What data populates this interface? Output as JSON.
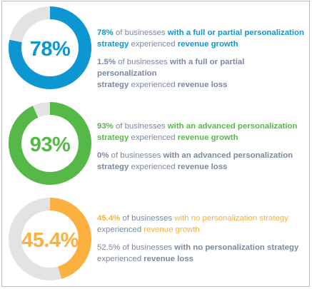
{
  "chart_data": [
    {
      "type": "donut",
      "value": 78,
      "label": "78%",
      "color": "#0c96d2",
      "track_color": "#e3e3e3",
      "statements": [
        {
          "value_text": "78%",
          "line1_mid": " of businesses ",
          "line1_bold": "with a full or partial personalization",
          "line2_bold1": "strategy",
          "line2_mid": "  experienced ",
          "line2_bold2": "revenue growth"
        },
        {
          "value_text": "1.5%",
          "line1_mid": " of businesses ",
          "line1_bold": "with a full or partial personalization",
          "line2_bold1": "strategy",
          "line2_mid": "  experienced ",
          "line2_bold2": "revenue loss"
        }
      ]
    },
    {
      "type": "donut",
      "value": 93,
      "label": "93%",
      "color": "#55b947",
      "track_color": "#e3e3e3",
      "statements": [
        {
          "value_text": "93%",
          "line1_mid": " of businesses ",
          "line1_bold": "with an advanced personalization",
          "line2_bold1": "strategy",
          "line2_mid": " experienced ",
          "line2_bold2": "revenue growth"
        },
        {
          "value_text": "0%",
          "line1_mid": " of businesses ",
          "line1_bold": "with an advanced personalization",
          "line2_bold1": "strategy",
          "line2_mid": " experienced ",
          "line2_bold2": "revenue loss"
        }
      ]
    },
    {
      "type": "donut",
      "value": 45.4,
      "label": "45.4%",
      "color": "#fbb040",
      "track_color": "#e3e3e3",
      "statements": [
        {
          "value_text": "45.4%",
          "line1_mid": " of businesses ",
          "line1_bold": "with no personalization strategy",
          "line2_bold1": "",
          "line2_mid": "experienced ",
          "line2_bold2": "revenue growth"
        },
        {
          "value_text": "52.5%",
          "line1_mid": " of businesses ",
          "line1_bold": "with no personalization strategy",
          "line2_bold1": "",
          "line2_mid": "experienced ",
          "line2_bold2": "revenue loss"
        }
      ]
    }
  ],
  "loss_text_color": "#7a88a3"
}
